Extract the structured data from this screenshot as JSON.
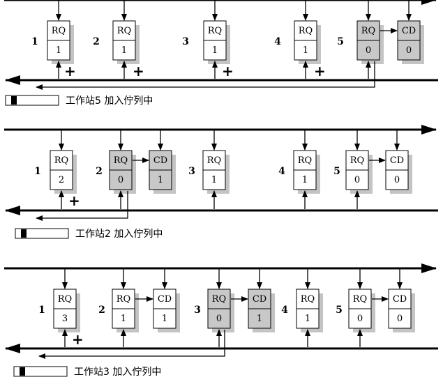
{
  "panels": [
    {
      "caption": "工作站5 加入佇列中",
      "stations": [
        {
          "num": "1",
          "rq": {
            "label": "RQ",
            "value": "1",
            "shaded": false
          },
          "cd": null,
          "plus": "+"
        },
        {
          "num": "2",
          "rq": {
            "label": "RQ",
            "value": "1",
            "shaded": false
          },
          "cd": null,
          "plus": "+"
        },
        {
          "num": "3",
          "rq": {
            "label": "RQ",
            "value": "1",
            "shaded": false
          },
          "cd": null,
          "plus": "+"
        },
        {
          "num": "4",
          "rq": {
            "label": "RQ",
            "value": "1",
            "shaded": false
          },
          "cd": null,
          "plus": "+"
        },
        {
          "num": "5",
          "rq": {
            "label": "RQ",
            "value": "0",
            "shaded": true
          },
          "cd": {
            "label": "CD",
            "value": "0",
            "shaded": true
          },
          "plus": ""
        }
      ]
    },
    {
      "caption": "工作站2 加入佇列中",
      "stations": [
        {
          "num": "1",
          "rq": {
            "label": "RQ",
            "value": "2",
            "shaded": false
          },
          "cd": null,
          "plus": "+"
        },
        {
          "num": "2",
          "rq": {
            "label": "RQ",
            "value": "0",
            "shaded": true
          },
          "cd": {
            "label": "CD",
            "value": "1",
            "shaded": true
          },
          "plus": ""
        },
        {
          "num": "3",
          "rq": {
            "label": "RQ",
            "value": "1",
            "shaded": false
          },
          "cd": null,
          "plus": ""
        },
        {
          "num": "4",
          "rq": {
            "label": "RQ",
            "value": "1",
            "shaded": false
          },
          "cd": null,
          "plus": ""
        },
        {
          "num": "5",
          "rq": {
            "label": "RQ",
            "value": "0",
            "shaded": false
          },
          "cd": {
            "label": "CD",
            "value": "0",
            "shaded": false
          },
          "plus": ""
        }
      ]
    },
    {
      "caption": "工作站3 加入佇列中",
      "stations": [
        {
          "num": "1",
          "rq": {
            "label": "RQ",
            "value": "3",
            "shaded": false
          },
          "cd": null,
          "plus": "+"
        },
        {
          "num": "2",
          "rq": {
            "label": "RQ",
            "value": "1",
            "shaded": false
          },
          "cd": {
            "label": "CD",
            "value": "1",
            "shaded": false
          },
          "plus": ""
        },
        {
          "num": "3",
          "rq": {
            "label": "RQ",
            "value": "0",
            "shaded": true
          },
          "cd": {
            "label": "CD",
            "value": "1",
            "shaded": true
          },
          "plus": ""
        },
        {
          "num": "4",
          "rq": {
            "label": "RQ",
            "value": "1",
            "shaded": false
          },
          "cd": null,
          "plus": ""
        },
        {
          "num": "5",
          "rq": {
            "label": "RQ",
            "value": "0",
            "shaded": false
          },
          "cd": {
            "label": "CD",
            "value": "0",
            "shaded": false
          },
          "plus": ""
        }
      ]
    }
  ]
}
